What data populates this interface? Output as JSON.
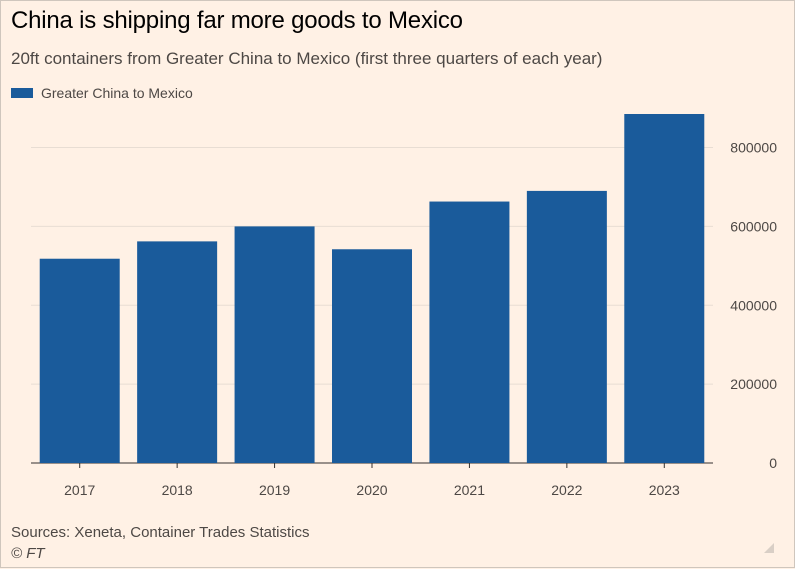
{
  "header": {
    "title": "China is shipping far more goods to Mexico",
    "subtitle": "20ft containers from Greater China to Mexico (first three quarters of each year)"
  },
  "legend": {
    "label": "Greater China to Mexico",
    "color": "#1a5b9b"
  },
  "footer": {
    "source": "Sources: Xeneta, Container Trades Statistics",
    "credit": "© FT"
  },
  "chart_data": {
    "type": "bar",
    "categories": [
      "2017",
      "2018",
      "2019",
      "2020",
      "2021",
      "2022",
      "2023"
    ],
    "series": [
      {
        "name": "Greater China to Mexico",
        "values": [
          518000,
          562000,
          600000,
          542000,
          663000,
          690000,
          885000
        ],
        "color": "#1a5b9b"
      }
    ],
    "ylim": [
      0,
      885000
    ],
    "yticks": [
      0,
      200000,
      400000,
      600000,
      800000
    ],
    "ytick_labels": [
      "0",
      "200000",
      "400000",
      "600000",
      "800000"
    ],
    "y_axis_position": "right",
    "grid": true,
    "legend_position": "top-left"
  }
}
